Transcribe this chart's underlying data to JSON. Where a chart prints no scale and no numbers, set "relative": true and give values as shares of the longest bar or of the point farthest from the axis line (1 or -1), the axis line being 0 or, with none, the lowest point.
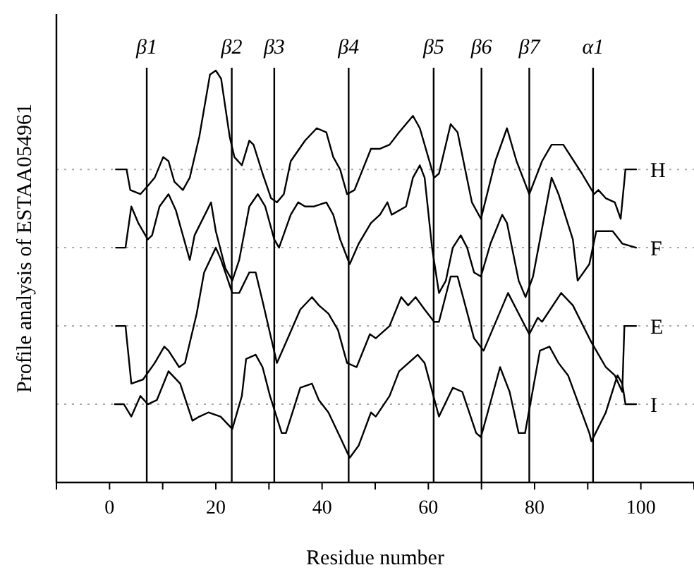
{
  "chart_data": {
    "type": "line",
    "relative": true,
    "xlabel": "Residue number",
    "ylabel": "Profile analysis of ESTAA054961",
    "xlim": [
      -10,
      110
    ],
    "xticks": [
      {
        "value": -10,
        "label": null
      },
      0,
      {
        "value": 10,
        "label": null
      },
      20,
      {
        "value": 30,
        "label": null
      },
      40,
      {
        "value": 50,
        "label": null
      },
      60,
      {
        "value": 70,
        "label": null
      },
      80,
      {
        "value": 90,
        "label": null
      },
      100,
      {
        "value": 110,
        "label": null
      }
    ],
    "marker": "none",
    "line_style": "solid",
    "grid": false,
    "series": [
      {
        "name": "H",
        "color": "#000000",
        "x": [
          1.2,
          3.2,
          3.9,
          5.8,
          7.2,
          8.5,
          10.1,
          11.1,
          12.2,
          13.8,
          15.1,
          16.9,
          18.9,
          20.0,
          21.0,
          22.6,
          23.5,
          24.9,
          26.3,
          27.1,
          28.8,
          30.4,
          31.5,
          32.8,
          34.1,
          36.8,
          39.0,
          40.8,
          42.1,
          43.4,
          44.7,
          46.1,
          49.2,
          50.9,
          52.7,
          54.5,
          57.1,
          58.4,
          61.1,
          62.0,
          64.2,
          65.5,
          68.2,
          69.9,
          72.6,
          74.8,
          76.6,
          79.0,
          81.4,
          83.2,
          85.4,
          88.9,
          91.2,
          92.0,
          93.4,
          95.1,
          96.2,
          97.1,
          99.1
        ],
        "values": [
          0.76,
          0.76,
          0.71,
          0.7,
          0.72,
          0.74,
          0.79,
          0.78,
          0.73,
          0.71,
          0.74,
          0.84,
          0.99,
          1.0,
          0.98,
          0.84,
          0.79,
          0.77,
          0.83,
          0.82,
          0.75,
          0.69,
          0.68,
          0.7,
          0.78,
          0.83,
          0.86,
          0.85,
          0.79,
          0.76,
          0.7,
          0.71,
          0.81,
          0.81,
          0.82,
          0.85,
          0.89,
          0.86,
          0.74,
          0.75,
          0.87,
          0.85,
          0.68,
          0.64,
          0.78,
          0.86,
          0.78,
          0.7,
          0.78,
          0.82,
          0.82,
          0.75,
          0.7,
          0.71,
          0.69,
          0.68,
          0.64,
          0.76,
          0.76
        ]
      },
      {
        "name": "F",
        "color": "#000000",
        "x": [
          1.2,
          3.0,
          4.1,
          5.4,
          7.2,
          8.0,
          9.4,
          11.1,
          12.5,
          15.1,
          16.0,
          19.1,
          20.0,
          21.8,
          23.1,
          24.4,
          26.3,
          27.9,
          29.3,
          31.0,
          31.9,
          34.1,
          35.5,
          36.8,
          38.5,
          40.8,
          42.1,
          43.4,
          45.2,
          46.9,
          49.2,
          50.9,
          52.3,
          53.1,
          55.8,
          57.1,
          58.4,
          59.3,
          60.7,
          62.0,
          63.3,
          64.6,
          66.1,
          67.3,
          68.6,
          69.9,
          71.7,
          73.9,
          74.8,
          77.0,
          78.3,
          79.7,
          83.2,
          84.5,
          87.2,
          88.1,
          90.3,
          91.6,
          92.5,
          94.7,
          96.5,
          99.1
        ],
        "values": [
          0.57,
          0.57,
          0.67,
          0.63,
          0.59,
          0.6,
          0.67,
          0.7,
          0.66,
          0.54,
          0.6,
          0.68,
          0.61,
          0.52,
          0.49,
          0.54,
          0.67,
          0.7,
          0.67,
          0.59,
          0.57,
          0.65,
          0.68,
          0.67,
          0.67,
          0.68,
          0.65,
          0.59,
          0.53,
          0.58,
          0.63,
          0.65,
          0.68,
          0.65,
          0.67,
          0.74,
          0.77,
          0.74,
          0.57,
          0.46,
          0.49,
          0.57,
          0.6,
          0.57,
          0.51,
          0.5,
          0.58,
          0.65,
          0.63,
          0.49,
          0.45,
          0.5,
          0.74,
          0.7,
          0.59,
          0.49,
          0.53,
          0.61,
          0.61,
          0.61,
          0.58,
          0.57
        ]
      },
      {
        "name": "E",
        "color": "#000000",
        "x": [
          1.2,
          3.0,
          4.1,
          6.3,
          8.5,
          10.3,
          11.1,
          13.1,
          14.2,
          16.4,
          17.8,
          20.0,
          21.0,
          23.1,
          24.4,
          26.3,
          27.5,
          28.8,
          31.5,
          33.2,
          35.9,
          38.1,
          39.4,
          41.2,
          43.0,
          44.7,
          46.5,
          49.0,
          50.1,
          52.7,
          54.9,
          56.2,
          57.6,
          59.3,
          61.1,
          62.0,
          64.2,
          65.5,
          68.6,
          70.4,
          75.0,
          79.0,
          80.6,
          81.4,
          85.0,
          87.2,
          90.7,
          93.4,
          95.1,
          96.5,
          96.9,
          99.1
        ],
        "values": [
          0.38,
          0.38,
          0.24,
          0.25,
          0.29,
          0.33,
          0.32,
          0.28,
          0.29,
          0.41,
          0.51,
          0.57,
          0.54,
          0.46,
          0.46,
          0.51,
          0.51,
          0.44,
          0.29,
          0.34,
          0.42,
          0.45,
          0.43,
          0.41,
          0.37,
          0.29,
          0.28,
          0.36,
          0.35,
          0.38,
          0.45,
          0.43,
          0.45,
          0.42,
          0.39,
          0.39,
          0.5,
          0.5,
          0.35,
          0.32,
          0.46,
          0.36,
          0.4,
          0.39,
          0.46,
          0.43,
          0.34,
          0.28,
          0.26,
          0.22,
          0.38,
          0.38
        ]
      },
      {
        "name": "I",
        "color": "#000000",
        "x": [
          1.0,
          2.7,
          4.1,
          5.8,
          7.2,
          8.9,
          11.1,
          13.3,
          15.6,
          16.9,
          18.6,
          20.9,
          23.1,
          24.9,
          25.7,
          27.5,
          28.8,
          30.2,
          32.4,
          33.2,
          35.9,
          38.1,
          39.4,
          41.2,
          43.4,
          45.2,
          46.9,
          49.2,
          50.1,
          52.7,
          54.5,
          58.0,
          59.3,
          62.0,
          64.6,
          66.4,
          69.0,
          69.9,
          73.5,
          75.3,
          77.0,
          78.2,
          81.0,
          82.8,
          84.5,
          86.3,
          90.3,
          90.7,
          93.4,
          95.1,
          95.6,
          96.5,
          97.1,
          99.1
        ],
        "values": [
          0.19,
          0.19,
          0.16,
          0.21,
          0.19,
          0.2,
          0.27,
          0.24,
          0.15,
          0.16,
          0.17,
          0.16,
          0.13,
          0.21,
          0.3,
          0.31,
          0.28,
          0.21,
          0.12,
          0.12,
          0.23,
          0.24,
          0.2,
          0.17,
          0.11,
          0.06,
          0.09,
          0.17,
          0.16,
          0.21,
          0.27,
          0.31,
          0.29,
          0.16,
          0.23,
          0.22,
          0.12,
          0.11,
          0.28,
          0.22,
          0.12,
          0.12,
          0.32,
          0.33,
          0.29,
          0.26,
          0.12,
          0.1,
          0.17,
          0.24,
          0.26,
          0.24,
          0.19,
          0.19
        ]
      }
    ],
    "ref_lines": [
      {
        "axis": "y",
        "value": 0.76,
        "label": null,
        "color": "#aaaaaa",
        "line_style": "dotted"
      },
      {
        "axis": "y",
        "value": 0.57,
        "label": null,
        "color": "#aaaaaa",
        "line_style": "dotted"
      },
      {
        "axis": "y",
        "value": 0.38,
        "label": null,
        "color": "#aaaaaa",
        "line_style": "dotted"
      },
      {
        "axis": "y",
        "value": 0.19,
        "label": null,
        "color": "#aaaaaa",
        "line_style": "dotted"
      },
      {
        "axis": "x",
        "value": 7,
        "label": "β1",
        "color": "#000000",
        "line_style": "solid"
      },
      {
        "axis": "x",
        "value": 23,
        "label": "β2",
        "color": "#000000",
        "line_style": "solid"
      },
      {
        "axis": "x",
        "value": 31,
        "label": "β3",
        "color": "#000000",
        "line_style": "solid"
      },
      {
        "axis": "x",
        "value": 45,
        "label": "β4",
        "color": "#000000",
        "line_style": "solid"
      },
      {
        "axis": "x",
        "value": 61,
        "label": "β5",
        "color": "#000000",
        "line_style": "solid"
      },
      {
        "axis": "x",
        "value": 70,
        "label": "β6",
        "color": "#000000",
        "line_style": "solid"
      },
      {
        "axis": "x",
        "value": 79,
        "label": "β7",
        "color": "#000000",
        "line_style": "solid"
      },
      {
        "axis": "x",
        "value": 91,
        "label": "α1",
        "color": "#000000",
        "line_style": "solid"
      }
    ]
  }
}
